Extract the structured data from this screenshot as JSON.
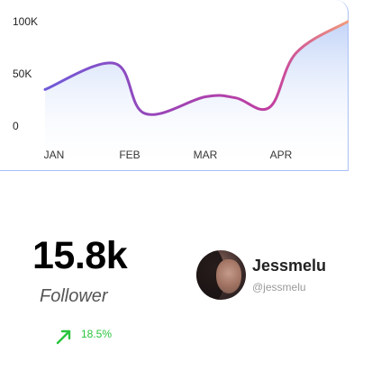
{
  "chart_data": {
    "type": "area",
    "categories": [
      "JAN",
      "FEB",
      "MAR",
      "APR"
    ],
    "y_ticks": [
      "100K",
      "50K",
      "0"
    ],
    "ylim": [
      0,
      100000
    ],
    "x": [
      0,
      0.8,
      1.2,
      2.0,
      2.4,
      2.85,
      3.2,
      3.55
    ],
    "values": [
      35000,
      60000,
      12000,
      28000,
      27000,
      18000,
      70000,
      100000
    ],
    "grid": false,
    "line_gradient": [
      "#6f5ad8",
      "#c23fa0",
      "#f29a7c"
    ],
    "area_gradient": [
      "#b9cdf7",
      "#ffffff"
    ]
  },
  "stats": {
    "follower_count": "15.8k",
    "follower_label": "Follower",
    "growth": "18.5%",
    "growth_color": "#29c43d"
  },
  "profile": {
    "name": "Jessmelu",
    "handle": "@jessmelu"
  },
  "icons": {
    "growth": "arrow-up-right-icon"
  }
}
